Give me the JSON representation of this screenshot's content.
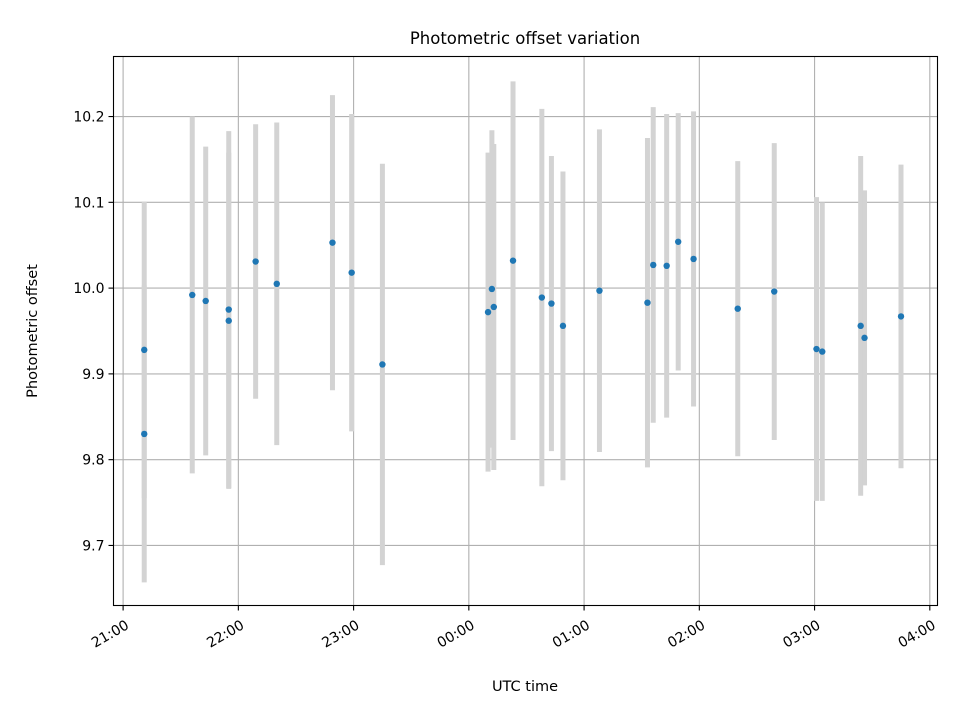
{
  "chart_data": {
    "type": "scatter",
    "title": "Photometric offset variation",
    "xlabel": "UTC time",
    "ylabel": "Photometric offset",
    "x_axis": "time",
    "xlim": [
      "20:55",
      "04:04"
    ],
    "ylim": [
      9.63,
      10.27
    ],
    "grid": true,
    "legend": "none",
    "x_ticks": [
      {
        "time": "21:00",
        "label": "21:00"
      },
      {
        "time": "22:00",
        "label": "22:00"
      },
      {
        "time": "23:00",
        "label": "23:00"
      },
      {
        "time": "00:00",
        "label": "00:00"
      },
      {
        "time": "01:00",
        "label": "01:00"
      },
      {
        "time": "02:00",
        "label": "02:00"
      },
      {
        "time": "03:00",
        "label": "03:00"
      },
      {
        "time": "04:00",
        "label": "04:00"
      }
    ],
    "y_ticks": [
      9.7,
      9.8,
      9.9,
      10.0,
      10.1,
      10.2
    ],
    "colors": {
      "points": "#1f77b4",
      "errorbars": "#d3d3d3",
      "grid": "#b0b0b0"
    },
    "points": [
      {
        "x": "21:11",
        "y": 9.928,
        "err": 0.173
      },
      {
        "x": "21:11",
        "y": 9.83,
        "err": 0.173
      },
      {
        "x": "21:36",
        "y": 9.992,
        "err": 0.208
      },
      {
        "x": "21:43",
        "y": 9.985,
        "err": 0.18
      },
      {
        "x": "21:55",
        "y": 9.962,
        "err": 0.196
      },
      {
        "x": "21:55",
        "y": 9.975,
        "err": 0.208
      },
      {
        "x": "22:09",
        "y": 10.031,
        "err": 0.16
      },
      {
        "x": "22:20",
        "y": 10.005,
        "err": 0.188
      },
      {
        "x": "22:49",
        "y": 10.053,
        "err": 0.172
      },
      {
        "x": "22:59",
        "y": 10.018,
        "err": 0.185
      },
      {
        "x": "23:15",
        "y": 9.911,
        "err": 0.234
      },
      {
        "x": "00:10",
        "y": 9.972,
        "err": 0.186
      },
      {
        "x": "00:12",
        "y": 9.999,
        "err": 0.185
      },
      {
        "x": "00:13",
        "y": 9.978,
        "err": 0.19
      },
      {
        "x": "00:23",
        "y": 10.032,
        "err": 0.209
      },
      {
        "x": "00:38",
        "y": 9.989,
        "err": 0.22
      },
      {
        "x": "00:43",
        "y": 9.982,
        "err": 0.172
      },
      {
        "x": "00:49",
        "y": 9.956,
        "err": 0.18
      },
      {
        "x": "01:08",
        "y": 9.997,
        "err": 0.188
      },
      {
        "x": "01:33",
        "y": 9.983,
        "err": 0.192
      },
      {
        "x": "01:36",
        "y": 10.027,
        "err": 0.184
      },
      {
        "x": "01:43",
        "y": 10.026,
        "err": 0.177
      },
      {
        "x": "01:49",
        "y": 10.054,
        "err": 0.15
      },
      {
        "x": "01:57",
        "y": 10.034,
        "err": 0.172
      },
      {
        "x": "02:20",
        "y": 9.976,
        "err": 0.172
      },
      {
        "x": "02:39",
        "y": 9.996,
        "err": 0.173
      },
      {
        "x": "03:01",
        "y": 9.929,
        "err": 0.177
      },
      {
        "x": "03:04",
        "y": 9.926,
        "err": 0.174
      },
      {
        "x": "03:24",
        "y": 9.956,
        "err": 0.198
      },
      {
        "x": "03:26",
        "y": 9.942,
        "err": 0.172
      },
      {
        "x": "03:45",
        "y": 9.967,
        "err": 0.177
      }
    ]
  }
}
